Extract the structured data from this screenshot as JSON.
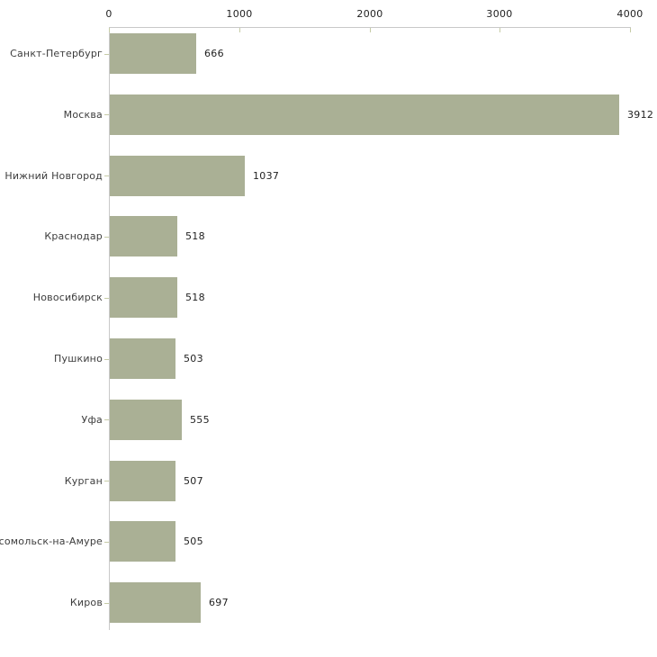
{
  "chart_data": {
    "type": "bar",
    "orientation": "horizontal",
    "title": "",
    "xlabel": "",
    "ylabel": "",
    "categories": [
      "Санкт-Петербург",
      "Москва",
      "Нижний Новгород",
      "Краснодар",
      "Новосибирск",
      "Пушкино",
      "Уфа",
      "Курган",
      "Комсомольск-на-Амуре",
      "Киров"
    ],
    "values": [
      666,
      3912,
      1037,
      518,
      518,
      503,
      555,
      507,
      505,
      697
    ],
    "x_ticks": [
      "0",
      "1000",
      "2000",
      "3000",
      "4000"
    ],
    "x_tick_values": [
      0,
      1000,
      2000,
      3000,
      4000
    ],
    "xlim": [
      0,
      4000
    ],
    "axis_position": "top",
    "grid": false,
    "legend": "none",
    "colors": {
      "bar": "#aab095",
      "axis_line": "#c9c9c9",
      "tick_mark": "#c6cba6",
      "category_label": "#3c3c3c",
      "value_label": "#1f1f1f",
      "background": "#ffffff"
    }
  }
}
